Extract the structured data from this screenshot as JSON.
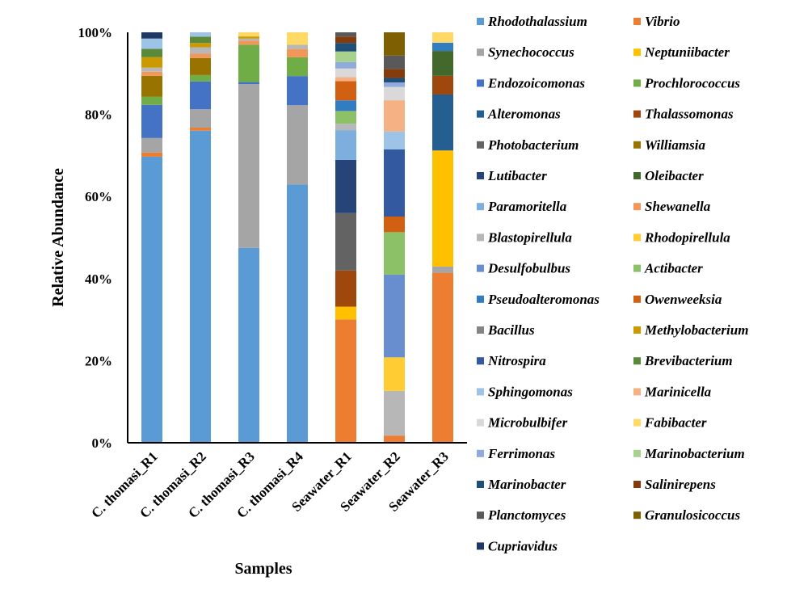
{
  "chart_data": {
    "type": "bar",
    "stacked": true,
    "title": "",
    "xlabel": "Samples",
    "ylabel": "Relative Abundance",
    "ylim": [
      0,
      100
    ],
    "yticks": [
      "0%",
      "20%",
      "40%",
      "60%",
      "80%",
      "100%"
    ],
    "categories": [
      "C. thomasi_R1",
      "C. thomasi_R2",
      "C. thomasi_R3",
      "C. thomasi_R4",
      "Seawater_R1",
      "Seawater_R2",
      "Seawater_R3"
    ],
    "legend_position": "right",
    "grid": false,
    "series": [
      {
        "name": "Rhodothalassium",
        "color": "#5b9bd5",
        "values": [
          69,
          73,
          47,
          62,
          0,
          0,
          0
        ]
      },
      {
        "name": "Vibrio",
        "color": "#ed7d31",
        "values": [
          1,
          0.7,
          0,
          0,
          29,
          1.6,
          41
        ]
      },
      {
        "name": "Synechococcus",
        "color": "#a5a5a5",
        "values": [
          3.5,
          4.3,
          39.5,
          19,
          0,
          0,
          1.5
        ]
      },
      {
        "name": "Neptuniibacter",
        "color": "#ffc000",
        "values": [
          0,
          0,
          0,
          0,
          3,
          0,
          28
        ]
      },
      {
        "name": "Endozoicomonas",
        "color": "#4472c4",
        "values": [
          8,
          6.5,
          0.5,
          7,
          0,
          0,
          0
        ]
      },
      {
        "name": "Prochlorococcus",
        "color": "#70ad47",
        "values": [
          2,
          1.5,
          9,
          4.5,
          0,
          0,
          0
        ]
      },
      {
        "name": "Alteromonas",
        "color": "#255e91",
        "values": [
          0,
          0,
          0,
          0,
          0,
          0,
          13.5
        ]
      },
      {
        "name": "Thalassomonas",
        "color": "#9e480e",
        "values": [
          0,
          0,
          0,
          0,
          8.5,
          0,
          4.5
        ]
      },
      {
        "name": "Photobacterium",
        "color": "#636363",
        "values": [
          0,
          0,
          0,
          0,
          13.5,
          0,
          0
        ]
      },
      {
        "name": "Williamsia",
        "color": "#997300",
        "values": [
          5,
          4,
          0,
          0,
          0,
          0,
          0
        ]
      },
      {
        "name": "Lutibacter",
        "color": "#264478",
        "values": [
          0,
          0,
          0,
          0,
          12.5,
          0,
          0
        ]
      },
      {
        "name": "Oleibacter",
        "color": "#43682b",
        "values": [
          0,
          0,
          0,
          0,
          0,
          0,
          6
        ]
      },
      {
        "name": "Paramoritella",
        "color": "#7cafdd",
        "values": [
          0,
          0,
          0,
          0,
          7,
          0,
          0
        ]
      },
      {
        "name": "Shewanella",
        "color": "#f1975a",
        "values": [
          1,
          1,
          1,
          2,
          0,
          0,
          0
        ]
      },
      {
        "name": "Blastopirellula",
        "color": "#b7b7b7",
        "values": [
          1,
          1.5,
          0.5,
          1,
          1.5,
          10,
          0
        ]
      },
      {
        "name": "Rhodopirellula",
        "color": "#ffcd33",
        "values": [
          0,
          0,
          0,
          0,
          0,
          7.5,
          0
        ]
      },
      {
        "name": "Desulfobulbus",
        "color": "#698ed0",
        "values": [
          0,
          0,
          0,
          0,
          0,
          18.5,
          0
        ]
      },
      {
        "name": "Actibacter",
        "color": "#8cc168",
        "values": [
          0,
          0,
          0,
          0,
          3,
          9.5,
          0
        ]
      },
      {
        "name": "Pseudoalteromonas",
        "color": "#327dc2",
        "values": [
          0,
          0,
          0,
          0,
          2.5,
          0,
          2
        ]
      },
      {
        "name": "Owenweeksia",
        "color": "#d26012",
        "values": [
          0,
          0,
          0,
          0,
          4.5,
          3.5,
          0
        ]
      },
      {
        "name": "Bacillus",
        "color": "#848484",
        "values": [
          0,
          0,
          0,
          0,
          0,
          0,
          0
        ]
      },
      {
        "name": "Methylobacterium",
        "color": "#cc9a00",
        "values": [
          2.5,
          1,
          0.5,
          0,
          0,
          0,
          0
        ]
      },
      {
        "name": "Nitrospira",
        "color": "#335aa1",
        "values": [
          0,
          0,
          0,
          0,
          0,
          15,
          0
        ]
      },
      {
        "name": "Brevibacterium",
        "color": "#5a8a39",
        "values": [
          2,
          1.5,
          0,
          0,
          0,
          0,
          0
        ]
      },
      {
        "name": "Sphingomonas",
        "color": "#9dc3e6",
        "values": [
          2.5,
          1,
          0,
          0,
          0,
          4,
          0
        ]
      },
      {
        "name": "Marinicella",
        "color": "#f4b183",
        "values": [
          0,
          0,
          0,
          0,
          1,
          7,
          0
        ]
      },
      {
        "name": "Microbulbifer",
        "color": "#d9d9d9",
        "values": [
          0,
          0,
          0,
          0,
          2,
          3,
          0
        ]
      },
      {
        "name": "Fabibacter",
        "color": "#ffd966",
        "values": [
          0,
          0,
          1,
          3,
          0,
          0,
          2.5
        ]
      },
      {
        "name": "Ferrimonas",
        "color": "#8faadc",
        "values": [
          0,
          0,
          0,
          0,
          1.5,
          1,
          0
        ]
      },
      {
        "name": "Marinobacterium",
        "color": "#a9d18e",
        "values": [
          0,
          0,
          0,
          0,
          2.5,
          0,
          0
        ]
      },
      {
        "name": "Marinobacter",
        "color": "#1f4e79",
        "values": [
          0,
          0,
          0,
          0,
          2,
          1,
          0
        ]
      },
      {
        "name": "Salinirepens",
        "color": "#843c0c",
        "values": [
          0,
          0,
          0,
          0,
          1.5,
          2,
          0
        ]
      },
      {
        "name": "Planctomyces",
        "color": "#595959",
        "values": [
          0,
          0,
          0,
          0,
          1,
          3,
          0
        ]
      },
      {
        "name": "Granulosicoccus",
        "color": "#7f6000",
        "values": [
          0,
          0,
          0,
          0,
          0,
          5.2,
          0
        ]
      },
      {
        "name": "Cupriavidus",
        "color": "#203864",
        "values": [
          1.5,
          0,
          0,
          0,
          0,
          0,
          0
        ]
      }
    ]
  }
}
